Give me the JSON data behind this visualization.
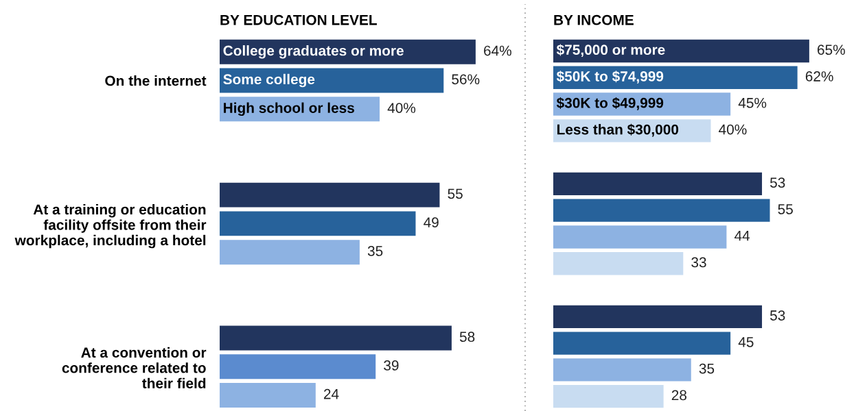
{
  "chart_data": [
    {
      "type": "bar",
      "orientation": "horizontal",
      "title": "BY EDUCATION LEVEL",
      "tick_labels": "y",
      "categories": [
        "On the internet",
        "At a training or education\nfacility offsite from their\nworkplace, including a hotel",
        "At a convention or\nconference related to\ntheir field"
      ],
      "series": [
        {
          "name": "College graduates or more",
          "color": "#22355e",
          "values": [
            64,
            55,
            58
          ],
          "value_labels": [
            "64%",
            "55",
            "58"
          ]
        },
        {
          "name": "Some college",
          "colors": [
            "#27629b",
            "#27629b",
            "#5b8bcf"
          ],
          "values": [
            56,
            49,
            39
          ],
          "value_labels": [
            "56%",
            "49",
            "39"
          ]
        },
        {
          "name": "High school or less",
          "color": "#8db2e2",
          "values": [
            40,
            35,
            24
          ],
          "value_labels": [
            "40%",
            "35",
            "24"
          ]
        }
      ]
    },
    {
      "type": "bar",
      "orientation": "horizontal",
      "title": "BY INCOME",
      "tick_labels": false,
      "categories": [
        null,
        null,
        null
      ],
      "series": [
        {
          "name": "$75,000 or more",
          "color": "#22355e",
          "values": [
            65,
            53,
            53
          ],
          "value_labels": [
            "65%",
            "53",
            "53"
          ]
        },
        {
          "name": "$50K to $74,999",
          "color": "#27629b",
          "values": [
            62,
            55,
            45
          ],
          "value_labels": [
            "62%",
            "55",
            "45"
          ]
        },
        {
          "name": "$30K to $49,999",
          "color": "#8db2e2",
          "values": [
            45,
            44,
            35
          ],
          "value_labels": [
            "45%",
            "44",
            "35"
          ]
        },
        {
          "name": "Less than $30,000",
          "color": "#c8dcf1",
          "values": [
            40,
            33,
            28
          ],
          "value_labels": [
            "40%",
            "33",
            "28"
          ]
        }
      ]
    }
  ]
}
